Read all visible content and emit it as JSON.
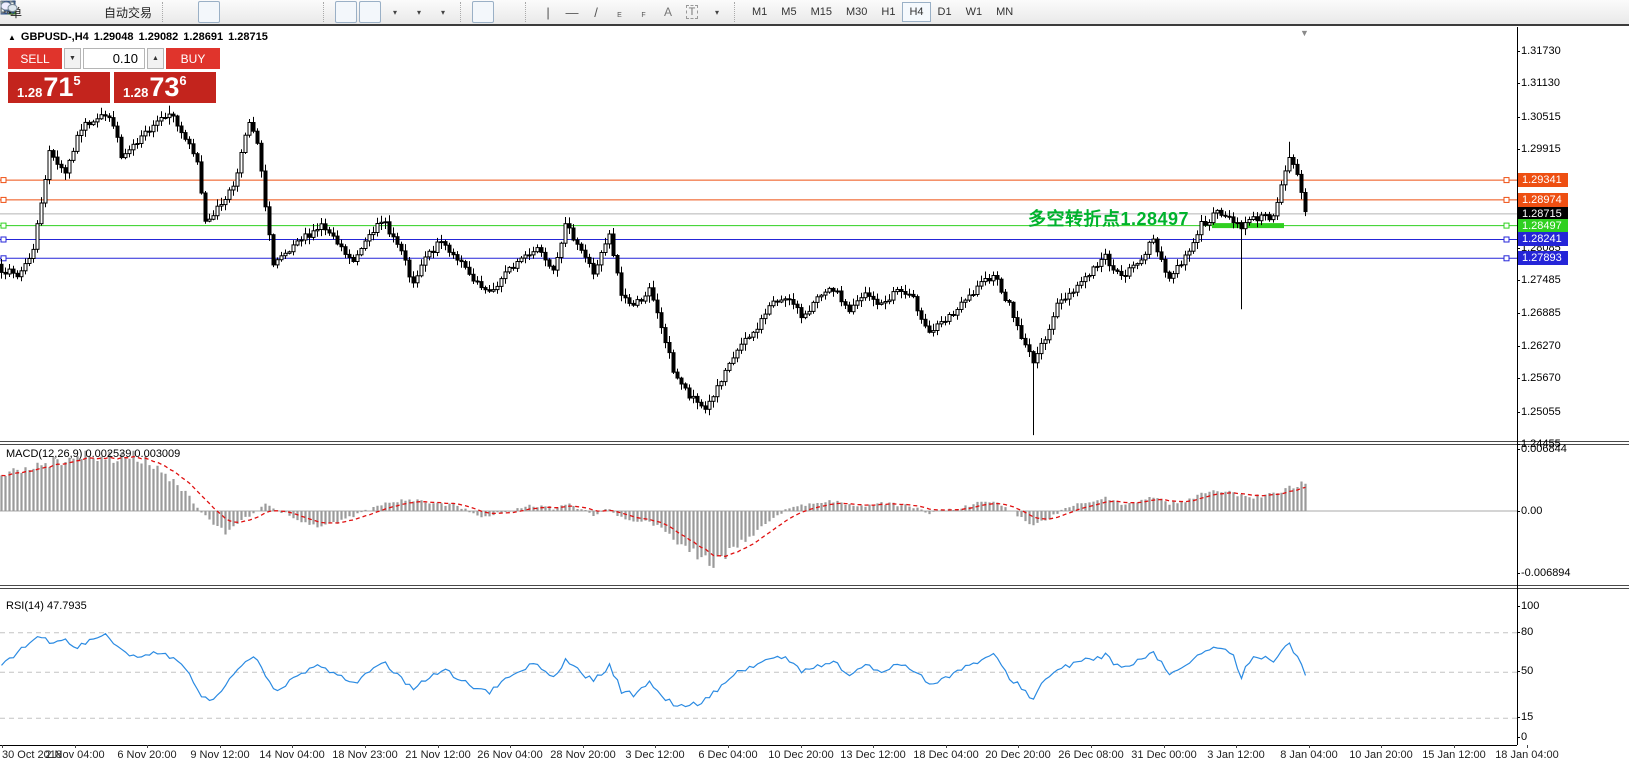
{
  "toolbar": {
    "new_order_label": "单",
    "autotrading_label": "自动交易",
    "timeframes": [
      "M1",
      "M5",
      "M15",
      "M30",
      "H1",
      "H4",
      "D1",
      "W1",
      "MN"
    ],
    "active_timeframe": "H4",
    "text_tool_label": "A",
    "textbox_tool_label": "T",
    "channel_tool_letter": "E",
    "fibo_tool_letter": "F"
  },
  "quote_header": {
    "collapse_arrow": "▲",
    "title": "GBPUSD-,H4",
    "open": "1.29048",
    "high": "1.29082",
    "low": "1.28691",
    "close": "1.28715"
  },
  "trade_panel": {
    "sell_label": "SELL",
    "buy_label": "BUY",
    "volume": "0.10",
    "sell_price_prefix": "1.28",
    "sell_price_big": "71",
    "sell_price_sup": "5",
    "buy_price_prefix": "1.28",
    "buy_price_big": "73",
    "buy_price_sup": "6"
  },
  "annotation": {
    "text": "多空转折点1.28497",
    "color": "#00b22d"
  },
  "indicator_labels": {
    "macd": "MACD(12,26,9) 0.002539 0.003009",
    "rsi": "RSI(14) 47.7935"
  },
  "axis": {
    "price_ticks": [
      {
        "label": "1.31730",
        "value": 1.3173
      },
      {
        "label": "1.31130",
        "value": 1.3113
      },
      {
        "label": "1.30515",
        "value": 1.30515
      },
      {
        "label": "1.29915",
        "value": 1.29915
      },
      {
        "label": "1.28085",
        "value": 1.28085
      },
      {
        "label": "1.27485",
        "value": 1.27485
      },
      {
        "label": "1.26885",
        "value": 1.26885
      },
      {
        "label": "1.26270",
        "value": 1.2627
      },
      {
        "label": "1.25670",
        "value": 1.2567
      },
      {
        "label": "1.25055",
        "value": 1.25055
      },
      {
        "label": "1.24455",
        "value": 1.24455
      }
    ],
    "macd_ticks": [
      {
        "label": "0.006844",
        "value": 0.006844
      },
      {
        "label": "0.00",
        "value": 0
      },
      {
        "label": "-0.006894",
        "value": -0.006894
      }
    ],
    "rsi_ticks": [
      {
        "label": "100",
        "value": 100
      },
      {
        "label": "80",
        "value": 80
      },
      {
        "label": "50",
        "value": 50
      },
      {
        "label": "15",
        "value": 15
      },
      {
        "label": "0",
        "value": 0
      }
    ],
    "time_labels": [
      "30 Oct 2018",
      "2 Nov 04:00",
      "6 Nov 20:00",
      "9 Nov 12:00",
      "14 Nov 04:00",
      "18 Nov 23:00",
      "21 Nov 12:00",
      "26 Nov 04:00",
      "28 Nov 20:00",
      "3 Dec 12:00",
      "6 Dec 04:00",
      "10 Dec 20:00",
      "13 Dec 12:00",
      "18 Dec 04:00",
      "20 Dec 20:00",
      "26 Dec 08:00",
      "31 Dec 00:00",
      "3 Jan 12:00",
      "8 Jan 04:00",
      "10 Jan 20:00",
      "15 Jan 12:00",
      "18 Jan 04:00"
    ]
  },
  "price_badges": [
    {
      "label": "1.29341",
      "value": 1.29341,
      "color": "#ee4f12",
      "line": "#ee4f12",
      "handles": true
    },
    {
      "label": "1.28974",
      "value": 1.28974,
      "color": "#ee4f12",
      "line": "#ee4f12",
      "handles": true
    },
    {
      "label": "1.28715",
      "value": 1.28715,
      "color": "#000000",
      "line": "#b4b4b4",
      "handles": false
    },
    {
      "label": "1.28497",
      "value": 1.28497,
      "color": "#2fd020",
      "line": "#2fd020",
      "handles": true
    },
    {
      "label": "1.28241",
      "value": 1.28241,
      "color": "#2525d8",
      "line": "#2525d8",
      "handles": true
    },
    {
      "label": "1.27893",
      "value": 1.27893,
      "color": "#2525d8",
      "line": "#2525d8",
      "handles": true
    }
  ],
  "chart_data": [
    {
      "type": "candlestick",
      "symbol": "GBPUSD-",
      "timeframe": "H4",
      "current_ohlc": {
        "open": 1.29048,
        "high": 1.29082,
        "low": 1.28691,
        "close": 1.28715
      },
      "y_range": [
        1.24455,
        1.3173
      ],
      "bar_count": 327,
      "close_path_anchors": [
        [
          0,
          1.277
        ],
        [
          4,
          1.2755
        ],
        [
          8,
          1.2805
        ],
        [
          12,
          1.2985
        ],
        [
          16,
          1.295
        ],
        [
          20,
          1.303
        ],
        [
          25,
          1.3058
        ],
        [
          28,
          1.304
        ],
        [
          30,
          1.2975
        ],
        [
          34,
          1.3
        ],
        [
          38,
          1.304
        ],
        [
          42,
          1.3062
        ],
        [
          46,
          1.301
        ],
        [
          49,
          1.2965
        ],
        [
          51,
          1.286
        ],
        [
          54,
          1.288
        ],
        [
          58,
          1.2925
        ],
        [
          62,
          1.304
        ],
        [
          64,
          1.3
        ],
        [
          66,
          1.289
        ],
        [
          68,
          1.2775
        ],
        [
          72,
          1.28
        ],
        [
          76,
          1.283
        ],
        [
          80,
          1.285
        ],
        [
          84,
          1.2815
        ],
        [
          88,
          1.278
        ],
        [
          92,
          1.284
        ],
        [
          96,
          1.2855
        ],
        [
          100,
          1.28
        ],
        [
          103,
          1.2737
        ],
        [
          106,
          1.279
        ],
        [
          110,
          1.282
        ],
        [
          114,
          1.279
        ],
        [
          118,
          1.2745
        ],
        [
          122,
          1.2722
        ],
        [
          126,
          1.276
        ],
        [
          130,
          1.279
        ],
        [
          134,
          1.281
        ],
        [
          138,
          1.2772
        ],
        [
          141,
          1.2848
        ],
        [
          144,
          1.282
        ],
        [
          148,
          1.2762
        ],
        [
          152,
          1.283
        ],
        [
          155,
          1.2722
        ],
        [
          158,
          1.2702
        ],
        [
          162,
          1.273
        ],
        [
          165,
          1.2662
        ],
        [
          168,
          1.2582
        ],
        [
          172,
          1.2532
        ],
        [
          176,
          1.2512
        ],
        [
          180,
          1.256
        ],
        [
          184,
          1.262
        ],
        [
          188,
          1.265
        ],
        [
          192,
          1.27
        ],
        [
          196,
          1.272
        ],
        [
          200,
          1.2682
        ],
        [
          204,
          1.2712
        ],
        [
          208,
          1.2732
        ],
        [
          212,
          1.2692
        ],
        [
          216,
          1.2722
        ],
        [
          220,
          1.2702
        ],
        [
          224,
          1.2732
        ],
        [
          228,
          1.2712
        ],
        [
          232,
          1.2652
        ],
        [
          236,
          1.2672
        ],
        [
          240,
          1.2702
        ],
        [
          244,
          1.2732
        ],
        [
          248,
          1.2762
        ],
        [
          252,
          1.2702
        ],
        [
          256,
          1.2625
        ],
        [
          258,
          1.2602
        ],
        [
          260,
          1.2625
        ],
        [
          264,
          1.2702
        ],
        [
          268,
          1.2732
        ],
        [
          272,
          1.2762
        ],
        [
          276,
          1.2792
        ],
        [
          280,
          1.2752
        ],
        [
          284,
          1.2782
        ],
        [
          288,
          1.2822
        ],
        [
          292,
          1.2752
        ],
        [
          296,
          1.2792
        ],
        [
          300,
          1.2852
        ],
        [
          304,
          1.2872
        ],
        [
          308,
          1.286
        ],
        [
          310,
          1.285
        ],
        [
          312,
          1.2858
        ],
        [
          316,
          1.2872
        ],
        [
          318,
          1.2862
        ],
        [
          320,
          1.293
        ],
        [
          322,
          1.2978
        ],
        [
          324,
          1.294
        ],
        [
          326,
          1.2872
        ]
      ],
      "special_wicks": [
        {
          "i": 258,
          "low": 1.2462
        },
        {
          "i": 310,
          "low": 1.2695
        },
        {
          "i": 25,
          "high": 1.3068
        },
        {
          "i": 42,
          "high": 1.3072
        },
        {
          "i": 322,
          "high": 1.3005
        }
      ],
      "horizontal_levels": [
        1.29341,
        1.28974,
        1.28497,
        1.28241,
        1.27893
      ],
      "bid_line": 1.28715,
      "highlight_segment": {
        "value": 1.28497,
        "from_bar": 303,
        "to_bar": 321,
        "color": "#2fd020"
      }
    },
    {
      "type": "macd",
      "name": "MACD(12,26,9)",
      "current_values": [
        0.002539,
        0.003009
      ],
      "y_range": [
        -0.006894,
        0.006844
      ],
      "anchors": [
        [
          0,
          0.004
        ],
        [
          8,
          0.005
        ],
        [
          18,
          0.0058
        ],
        [
          28,
          0.0062
        ],
        [
          34,
          0.006
        ],
        [
          40,
          0.0045
        ],
        [
          46,
          0.002
        ],
        [
          52,
          -0.001
        ],
        [
          56,
          -0.0022
        ],
        [
          62,
          -0.0005
        ],
        [
          66,
          0.0008
        ],
        [
          72,
          -0.0005
        ],
        [
          78,
          -0.0018
        ],
        [
          84,
          -0.0012
        ],
        [
          90,
          -0.0002
        ],
        [
          96,
          0.0008
        ],
        [
          102,
          0.0012
        ],
        [
          108,
          0.0009
        ],
        [
          114,
          0.0006
        ],
        [
          120,
          -0.0006
        ],
        [
          126,
          -0.0002
        ],
        [
          132,
          0.0006
        ],
        [
          138,
          0.0003
        ],
        [
          142,
          0.0008
        ],
        [
          148,
          -0.0004
        ],
        [
          152,
          0.0002
        ],
        [
          156,
          -0.001
        ],
        [
          162,
          -0.0012
        ],
        [
          168,
          -0.003
        ],
        [
          174,
          -0.005
        ],
        [
          178,
          -0.0058
        ],
        [
          184,
          -0.004
        ],
        [
          190,
          -0.0018
        ],
        [
          196,
          0.0002
        ],
        [
          202,
          0.0008
        ],
        [
          208,
          0.001
        ],
        [
          214,
          0.0006
        ],
        [
          220,
          0.0008
        ],
        [
          226,
          0.0007
        ],
        [
          232,
          -0.0002
        ],
        [
          238,
          0.0002
        ],
        [
          244,
          0.0008
        ],
        [
          248,
          0.0012
        ],
        [
          252,
          0.0002
        ],
        [
          256,
          -0.0012
        ],
        [
          258,
          -0.0016
        ],
        [
          262,
          -0.0008
        ],
        [
          266,
          0.0004
        ],
        [
          272,
          0.001
        ],
        [
          276,
          0.0014
        ],
        [
          280,
          0.0008
        ],
        [
          284,
          0.001
        ],
        [
          288,
          0.0016
        ],
        [
          292,
          0.0008
        ],
        [
          296,
          0.001
        ],
        [
          300,
          0.0018
        ],
        [
          304,
          0.0022
        ],
        [
          308,
          0.002
        ],
        [
          312,
          0.0016
        ],
        [
          316,
          0.0018
        ],
        [
          320,
          0.0024
        ],
        [
          323,
          0.0028
        ],
        [
          326,
          0.003
        ]
      ]
    },
    {
      "type": "rsi",
      "name": "RSI(14)",
      "current_value": 47.7935,
      "y_range": [
        0,
        100
      ],
      "level_lines": [
        80,
        50,
        15
      ],
      "anchors": [
        [
          0,
          55
        ],
        [
          3,
          63
        ],
        [
          6,
          70
        ],
        [
          10,
          77
        ],
        [
          13,
          71
        ],
        [
          16,
          75
        ],
        [
          19,
          69
        ],
        [
          22,
          74
        ],
        [
          26,
          78
        ],
        [
          30,
          66
        ],
        [
          34,
          60
        ],
        [
          38,
          66
        ],
        [
          42,
          62
        ],
        [
          46,
          52
        ],
        [
          50,
          33
        ],
        [
          53,
          29
        ],
        [
          57,
          44
        ],
        [
          61,
          57
        ],
        [
          64,
          61
        ],
        [
          66,
          46
        ],
        [
          68,
          36
        ],
        [
          72,
          43
        ],
        [
          76,
          50
        ],
        [
          80,
          55
        ],
        [
          84,
          48
        ],
        [
          88,
          41
        ],
        [
          92,
          52
        ],
        [
          96,
          56
        ],
        [
          100,
          45
        ],
        [
          103,
          36
        ],
        [
          106,
          45
        ],
        [
          110,
          52
        ],
        [
          114,
          46
        ],
        [
          118,
          39
        ],
        [
          122,
          34
        ],
        [
          126,
          45
        ],
        [
          130,
          52
        ],
        [
          134,
          57
        ],
        [
          138,
          45
        ],
        [
          141,
          60
        ],
        [
          144,
          52
        ],
        [
          148,
          43
        ],
        [
          152,
          55
        ],
        [
          155,
          36
        ],
        [
          158,
          33
        ],
        [
          162,
          43
        ],
        [
          165,
          31
        ],
        [
          168,
          26
        ],
        [
          172,
          24
        ],
        [
          176,
          29
        ],
        [
          180,
          40
        ],
        [
          184,
          50
        ],
        [
          188,
          55
        ],
        [
          192,
          60
        ],
        [
          196,
          62
        ],
        [
          200,
          50
        ],
        [
          204,
          55
        ],
        [
          208,
          58
        ],
        [
          212,
          48
        ],
        [
          216,
          55
        ],
        [
          220,
          50
        ],
        [
          224,
          57
        ],
        [
          228,
          52
        ],
        [
          232,
          41
        ],
        [
          236,
          46
        ],
        [
          240,
          52
        ],
        [
          244,
          58
        ],
        [
          248,
          63
        ],
        [
          252,
          46
        ],
        [
          256,
          36
        ],
        [
          258,
          29
        ],
        [
          260,
          41
        ],
        [
          264,
          52
        ],
        [
          268,
          56
        ],
        [
          272,
          60
        ],
        [
          276,
          63
        ],
        [
          280,
          52
        ],
        [
          284,
          58
        ],
        [
          288,
          64
        ],
        [
          292,
          49
        ],
        [
          296,
          56
        ],
        [
          300,
          65
        ],
        [
          304,
          68
        ],
        [
          308,
          63
        ],
        [
          310,
          46
        ],
        [
          312,
          59
        ],
        [
          316,
          63
        ],
        [
          318,
          59
        ],
        [
          320,
          67
        ],
        [
          322,
          71
        ],
        [
          324,
          61
        ],
        [
          326,
          48
        ]
      ]
    }
  ],
  "colors": {
    "buy_sell_red": "#e0342c",
    "price_box_red": "#c3241d",
    "candle_up": "#ffffff",
    "candle_down": "#000000",
    "macd_signal": "#e01010",
    "macd_histogram": "#9a9a9a",
    "rsi_line": "#2a8ae2"
  }
}
